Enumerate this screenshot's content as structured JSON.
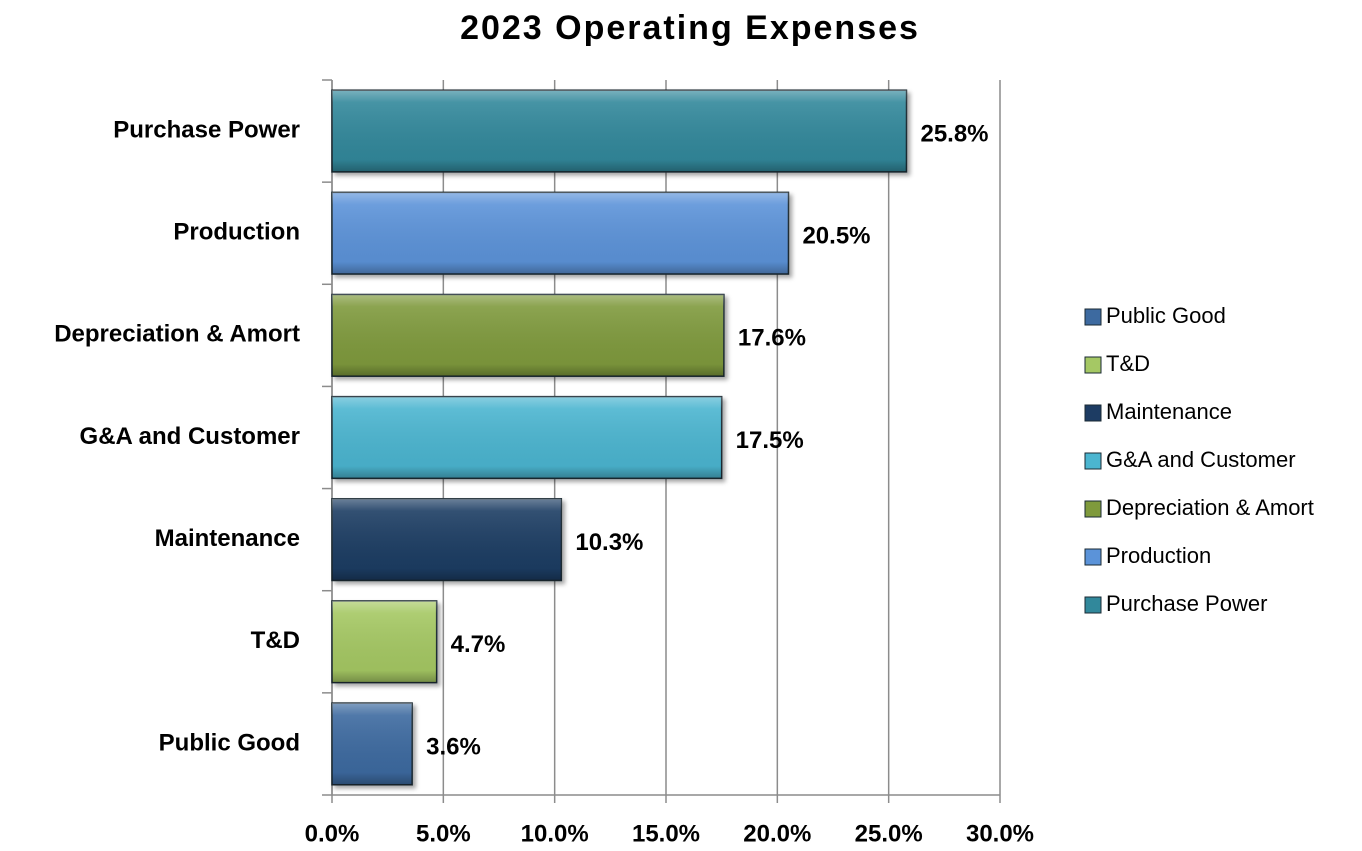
{
  "chart_data": {
    "type": "bar",
    "orientation": "horizontal",
    "title": "2023 Operating Expenses",
    "categories": [
      "Public Good",
      "T&D",
      "Maintenance",
      "G&A and Customer",
      "Depreciation & Amort",
      "Production",
      "Purchase Power"
    ],
    "values": [
      3.6,
      4.7,
      10.3,
      17.5,
      17.6,
      20.5,
      25.8
    ],
    "value_labels": [
      "3.6%",
      "4.7%",
      "10.3%",
      "17.5%",
      "17.6%",
      "20.5%",
      "25.8%"
    ],
    "colors": [
      "#3d6aa0",
      "#a5c864",
      "#1d3c63",
      "#4bb5d0",
      "#7f9a3c",
      "#5b93d9",
      "#31889b"
    ],
    "xlim": [
      0,
      30
    ],
    "xticks": [
      {
        "value": 0,
        "label": "0.0%"
      },
      {
        "value": 5,
        "label": "5.0%"
      },
      {
        "value": 10,
        "label": "10.0%"
      },
      {
        "value": 15,
        "label": "15.0%"
      },
      {
        "value": 20,
        "label": "20.0%"
      },
      {
        "value": 25,
        "label": "25.0%"
      },
      {
        "value": 30,
        "label": "30.0%"
      }
    ],
    "grid": true,
    "legend": "right"
  }
}
